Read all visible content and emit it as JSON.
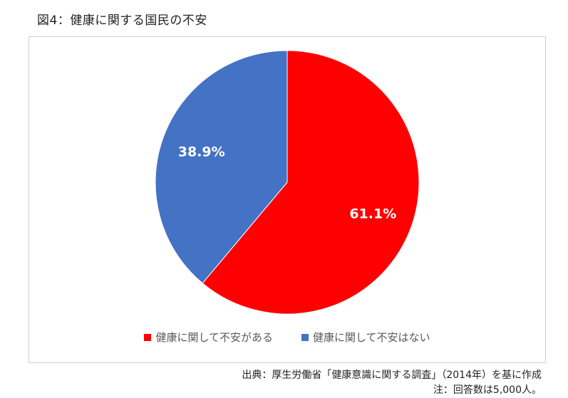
{
  "title": "図4：健康に関する国民の不安",
  "source": "出典：厚生労働省「健康意識に関する調査」（2014年）を基に作成",
  "note": "注：回答数は5,000人。",
  "chart_data": {
    "type": "pie",
    "title": "",
    "slices": [
      {
        "name": "健康に関して不安がある",
        "value": 61.1,
        "label": "61.1%",
        "color": "#ff0000"
      },
      {
        "name": "健康に関して不安はない",
        "value": 38.9,
        "label": "38.9%",
        "color": "#4472c4"
      }
    ],
    "start_angle": "12 o'clock",
    "direction": "clockwise",
    "legend_position": "bottom"
  }
}
